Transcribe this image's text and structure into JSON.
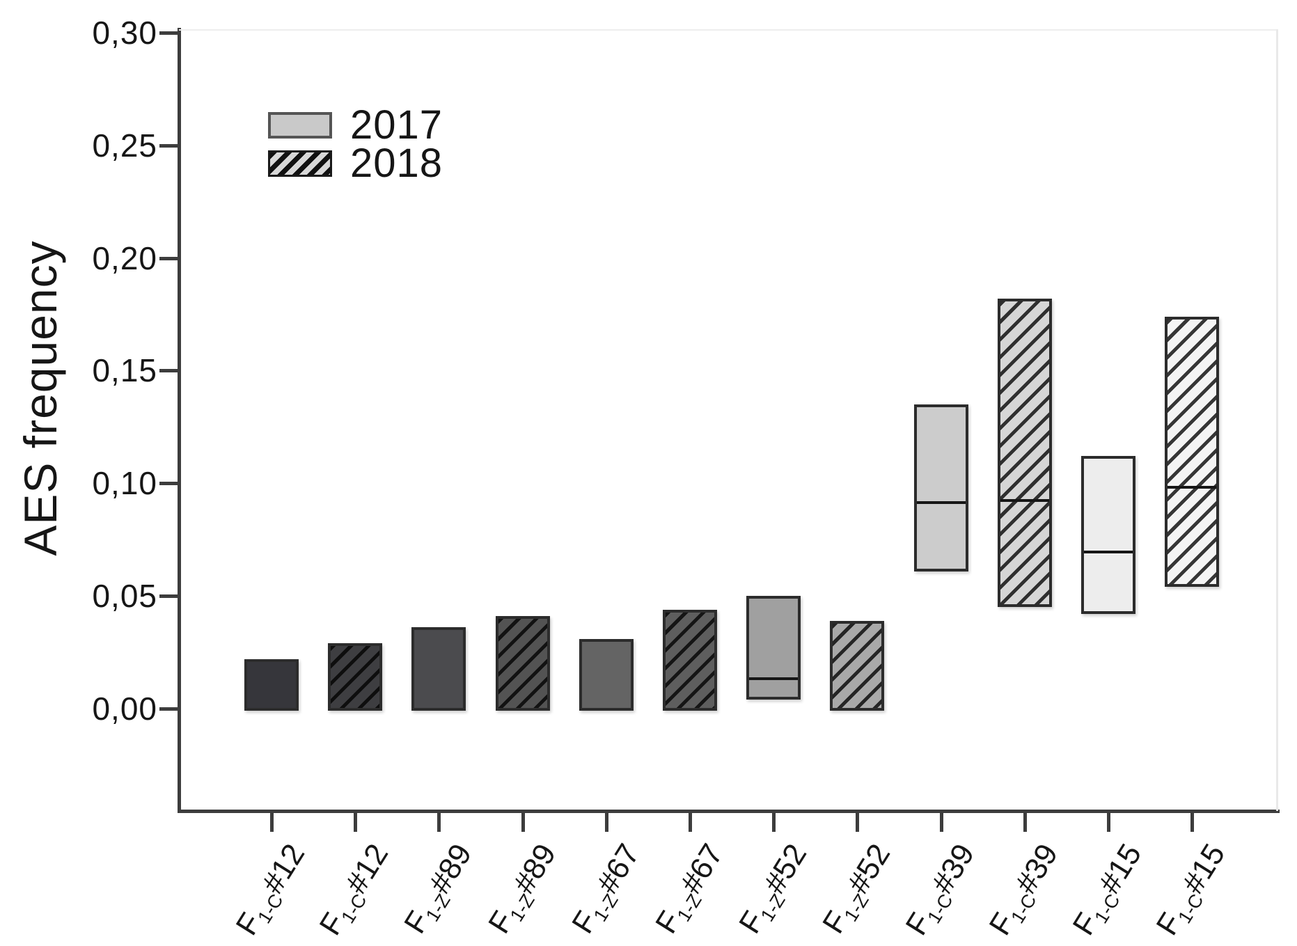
{
  "figure": {
    "background": "#ffffff"
  },
  "chart_data": {
    "type": "bar",
    "title": "",
    "xlabel": "",
    "ylabel": "AES frequency",
    "ylim": [
      0,
      0.3
    ],
    "grid": false,
    "legend_position": "upper-left-inside",
    "decimal_separator": ",",
    "yticks": [
      {
        "value": 0.0,
        "label": "0,00"
      },
      {
        "value": 0.05,
        "label": "0,05"
      },
      {
        "value": 0.1,
        "label": "0,10"
      },
      {
        "value": 0.15,
        "label": "0,15"
      },
      {
        "value": 0.2,
        "label": "0,20"
      },
      {
        "value": 0.25,
        "label": "0,25"
      },
      {
        "value": 0.3,
        "label": "0,30"
      }
    ],
    "legend": [
      {
        "label": "2017",
        "pattern": "solid",
        "fill": "#c9c9c9",
        "border": "#555555"
      },
      {
        "label": "2018",
        "pattern": "hatch",
        "fill": "#d8d8d8",
        "border": "#1a1a1a"
      }
    ],
    "bars": [
      {
        "category": {
          "base": "F",
          "sub": "1-C",
          "rest": "#12"
        },
        "year": "2017",
        "pattern": "solid",
        "fill": "#36363b",
        "low": 0.0,
        "high": 0.022,
        "median": null
      },
      {
        "category": {
          "base": "F",
          "sub": "1-C",
          "rest": "#12"
        },
        "year": "2018",
        "pattern": "hatch",
        "fill": "#3e3e41",
        "low": 0.0,
        "high": 0.029,
        "median": null
      },
      {
        "category": {
          "base": "F",
          "sub": "1-Z",
          "rest": "#89"
        },
        "year": "2017",
        "pattern": "solid",
        "fill": "#4b4b4e",
        "low": 0.0,
        "high": 0.036,
        "median": null
      },
      {
        "category": {
          "base": "F",
          "sub": "1-Z",
          "rest": "#89"
        },
        "year": "2018",
        "pattern": "hatch",
        "fill": "#535353",
        "low": 0.0,
        "high": 0.041,
        "median": null
      },
      {
        "category": {
          "base": "F",
          "sub": "1-Z",
          "rest": "#67"
        },
        "year": "2017",
        "pattern": "solid",
        "fill": "#646464",
        "low": 0.0,
        "high": 0.031,
        "median": null
      },
      {
        "category": {
          "base": "F",
          "sub": "1-Z",
          "rest": "#67"
        },
        "year": "2018",
        "pattern": "hatch",
        "fill": "#5e5e5e",
        "low": 0.0,
        "high": 0.044,
        "median": null
      },
      {
        "category": {
          "base": "F",
          "sub": "1-Z",
          "rest": "#52"
        },
        "year": "2017",
        "pattern": "solid",
        "fill": "#a0a0a0",
        "low": 0.004,
        "high": 0.05,
        "median": 0.014
      },
      {
        "category": {
          "base": "F",
          "sub": "1-Z",
          "rest": "#52"
        },
        "year": "2018",
        "pattern": "hatch",
        "fill": "#a9a9a9",
        "low": 0.0,
        "high": 0.039,
        "median": null
      },
      {
        "category": {
          "base": "F",
          "sub": "1-C",
          "rest": "#39"
        },
        "year": "2017",
        "pattern": "solid",
        "fill": "#cccccc",
        "low": 0.061,
        "high": 0.135,
        "median": 0.092
      },
      {
        "category": {
          "base": "F",
          "sub": "1-C",
          "rest": "#39"
        },
        "year": "2018",
        "pattern": "hatch",
        "fill": "#d6d6d6",
        "low": 0.045,
        "high": 0.182,
        "median": 0.093
      },
      {
        "category": {
          "base": "F",
          "sub": "1-C",
          "rest": "#15"
        },
        "year": "2017",
        "pattern": "solid",
        "fill": "#ededed",
        "low": 0.042,
        "high": 0.112,
        "median": 0.07
      },
      {
        "category": {
          "base": "F",
          "sub": "1-C",
          "rest": "#15"
        },
        "year": "2018",
        "pattern": "hatch",
        "fill": "#f4f4f4",
        "low": 0.054,
        "high": 0.174,
        "median": 0.099
      }
    ]
  }
}
